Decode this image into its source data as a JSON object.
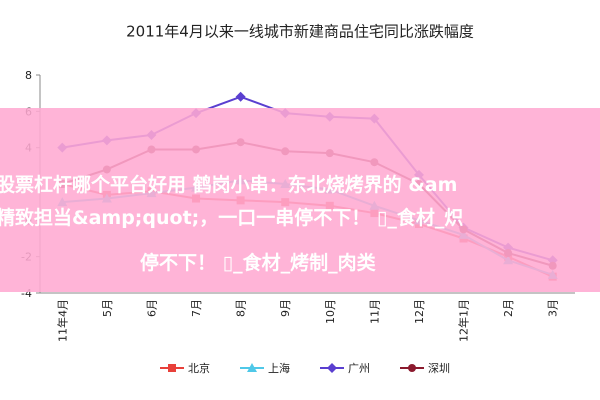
{
  "chart_data": {
    "type": "line",
    "title": "2011年4月以来一线城市新建商品住宅同比涨跌幅度",
    "categories": [
      "11年4月",
      "5月",
      "6月",
      "7月",
      "8月",
      "9月",
      "10月",
      "11月",
      "12月",
      "12年1月",
      "2月",
      "3月"
    ],
    "series": [
      {
        "name": "北京",
        "color": "#e8403a",
        "marker": "square",
        "values": [
          2.0,
          1.4,
          1.6,
          1.2,
          1.1,
          1.0,
          0.8,
          0.4,
          -0.2,
          -1.0,
          -2.0,
          -3.1
        ]
      },
      {
        "name": "上海",
        "color": "#4fc8e8",
        "marker": "triangle",
        "values": [
          1.0,
          1.2,
          1.5,
          1.8,
          2.2,
          2.0,
          1.7,
          0.8,
          0.0,
          -0.8,
          -2.2,
          -3.0
        ]
      },
      {
        "name": "广州",
        "color": "#5a3fd0",
        "marker": "diamond",
        "values": [
          4.0,
          4.4,
          4.7,
          5.9,
          6.8,
          5.9,
          5.7,
          5.6,
          2.5,
          -0.4,
          -1.5,
          -2.2
        ]
      },
      {
        "name": "深圳",
        "color": "#8b1a2e",
        "marker": "circle",
        "values": [
          2.0,
          2.8,
          3.9,
          3.9,
          4.3,
          3.8,
          3.7,
          3.2,
          2.0,
          -0.5,
          -1.8,
          -2.5
        ]
      }
    ],
    "ylim": [
      -4,
      8
    ],
    "yticks": [
      -4,
      -2,
      0,
      2,
      4,
      6,
      8
    ]
  },
  "overlay": {
    "lines": [
      "股票杠杆哪个平台好用 鹤岗小串：东北烧烤界的 &am",
      "精致担当&amp;quot;，一口一串停不下！ ▯_食材_炽",
      "停不下！ ▯_食材_烤制_肉类"
    ]
  }
}
